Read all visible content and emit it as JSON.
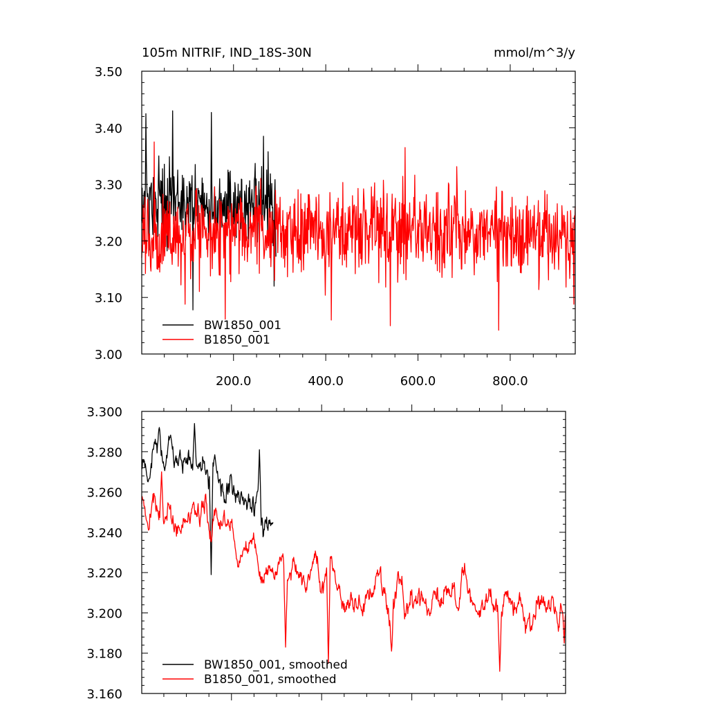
{
  "chart_data": [
    {
      "type": "line",
      "title": "105m NITRIF, IND_18S-30N",
      "units": "mmol/m^3/y",
      "xlim": [
        1,
        941
      ],
      "ylim": [
        3.0,
        3.5
      ],
      "yticks": [
        "3.00",
        "3.10",
        "3.20",
        "3.30",
        "3.40",
        "3.50"
      ],
      "ytick_values": [
        3.0,
        3.1,
        3.2,
        3.3,
        3.4,
        3.5
      ],
      "xticks": [
        "200.0",
        "400.0",
        "600.0",
        "800.0"
      ],
      "xtick_values": [
        200,
        400,
        600,
        800
      ],
      "legend": "bottom-left",
      "series": [
        {
          "name": "BW1850_001",
          "color": "#000000",
          "x_range": [
            1,
            292
          ],
          "baseline": 3.265,
          "amplitude": 0.045,
          "keypoints": [
            [
              10,
              3.425
            ],
            [
              68,
              3.43
            ],
            [
              112,
              3.078
            ],
            [
              152,
              3.427
            ],
            [
              265,
              3.385
            ],
            [
              288,
              3.12
            ]
          ]
        },
        {
          "name": "B1850_001",
          "color": "#ff0000",
          "x_range": [
            1,
            941
          ],
          "baseline": 3.215,
          "amplitude": 0.05,
          "keypoints": [
            [
              28,
              3.375
            ],
            [
              95,
              3.088
            ],
            [
              412,
              3.06
            ],
            [
              540,
              3.05
            ],
            [
              572,
              3.365
            ],
            [
              775,
              3.042
            ],
            [
              938,
              3.088
            ]
          ]
        }
      ]
    },
    {
      "type": "line",
      "title": "",
      "xlim": [
        1,
        941
      ],
      "ylim": [
        3.16,
        3.3
      ],
      "yticks": [
        "3.160",
        "3.180",
        "3.200",
        "3.220",
        "3.240",
        "3.260",
        "3.280",
        "3.300"
      ],
      "ytick_values": [
        3.16,
        3.18,
        3.2,
        3.22,
        3.24,
        3.26,
        3.28,
        3.3
      ],
      "xtick_values": [
        200,
        400,
        600,
        800
      ],
      "legend": "bottom-left",
      "series": [
        {
          "name": "BW1850_001, smoothed",
          "color": "#000000",
          "x_range": [
            1,
            292
          ],
          "trend": [
            [
              1,
              3.262
            ],
            [
              40,
              3.285
            ],
            [
              120,
              3.275
            ],
            [
              200,
              3.262
            ],
            [
              292,
              3.24
            ]
          ],
          "keypoints": [
            [
              40,
              3.292
            ],
            [
              118,
              3.294
            ],
            [
              155,
              3.219
            ],
            [
              262,
              3.281
            ],
            [
              292,
              3.245
            ]
          ]
        },
        {
          "name": "B1850_001, smoothed",
          "color": "#ff0000",
          "x_range": [
            1,
            941
          ],
          "trend": [
            [
              1,
              3.25
            ],
            [
              150,
              3.245
            ],
            [
              300,
              3.22
            ],
            [
              450,
              3.21
            ],
            [
              650,
              3.205
            ],
            [
              941,
              3.205
            ]
          ],
          "keypoints": [
            [
              45,
              3.27
            ],
            [
              320,
              3.183
            ],
            [
              415,
              3.175
            ],
            [
              555,
              3.181
            ],
            [
              795,
              3.171
            ],
            [
              938,
              3.185
            ]
          ]
        }
      ]
    }
  ]
}
